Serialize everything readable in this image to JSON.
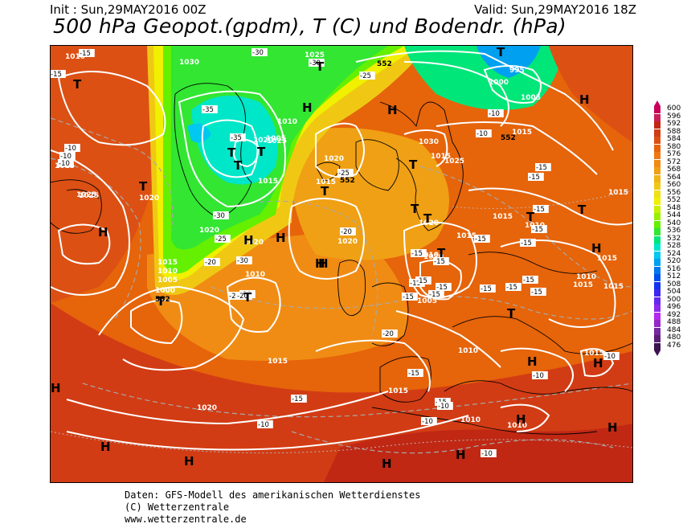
{
  "header": {
    "init": "Init : Sun,29MAY2016 00Z",
    "valid": "Valid: Sun,29MAY2016 18Z",
    "title": "500 hPa Geopot.(gpdm), T (C) und Bodendr. (hPa)"
  },
  "footer": {
    "line1": "Daten: GFS-Modell des amerikanischen Wetterdienstes",
    "line2": "(C) Wetterzentrale",
    "line3": "www.wetterzentrale.de"
  },
  "colorbar": {
    "levels": [
      "600",
      "596",
      "592",
      "588",
      "584",
      "580",
      "576",
      "572",
      "568",
      "564",
      "560",
      "556",
      "552",
      "548",
      "544",
      "540",
      "536",
      "532",
      "528",
      "524",
      "520",
      "516",
      "512",
      "508",
      "504",
      "500",
      "496",
      "492",
      "488",
      "484",
      "480",
      "476"
    ],
    "colors": [
      "#c8005a",
      "#c81e5a",
      "#c02814",
      "#d23c14",
      "#dc5014",
      "#e6640a",
      "#f07814",
      "#f08c14",
      "#f0a014",
      "#f0b414",
      "#f0c814",
      "#f0e014",
      "#f0f000",
      "#c8f000",
      "#96f000",
      "#64f000",
      "#32e632",
      "#00e678",
      "#00e6c8",
      "#00c8f0",
      "#00a0f0",
      "#0078f0",
      "#0050f0",
      "#1432f0",
      "#3c28f0",
      "#6428f0",
      "#8c28f0",
      "#b428f0",
      "#9628c8",
      "#7828a0",
      "#5a1e78",
      "#3c1450"
    ]
  },
  "map": {
    "pressure_centers": [
      {
        "label": "T"
      },
      {
        "label": "T"
      },
      {
        "label": "T"
      },
      {
        "label": "T"
      },
      {
        "label": "T"
      },
      {
        "label": "T"
      },
      {
        "label": "T"
      },
      {
        "label": "T"
      },
      {
        "label": "T"
      },
      {
        "label": "T"
      },
      {
        "label": "T"
      },
      {
        "label": "T"
      },
      {
        "label": "T"
      },
      {
        "label": "T"
      },
      {
        "label": "T"
      },
      {
        "label": "T"
      },
      {
        "label": "T"
      },
      {
        "label": "H"
      },
      {
        "label": "H"
      },
      {
        "label": "H"
      },
      {
        "label": "H"
      },
      {
        "label": "H"
      },
      {
        "label": "H"
      },
      {
        "label": "H"
      },
      {
        "label": "H"
      },
      {
        "label": "H"
      },
      {
        "label": "H"
      },
      {
        "label": "H"
      },
      {
        "label": "H"
      },
      {
        "label": "H"
      },
      {
        "label": "H"
      },
      {
        "label": "H"
      },
      {
        "label": "H"
      },
      {
        "label": "H"
      },
      {
        "label": "H"
      }
    ],
    "isobar_labels": [
      "1010",
      "1030",
      "1025",
      "995",
      "1000",
      "1005",
      "1015",
      "1020",
      "1025",
      "1010",
      "1005",
      "1030",
      "1025",
      "1015",
      "1020",
      "1015",
      "1025",
      "1020",
      "1020",
      "1020",
      "1015",
      "1010",
      "1015",
      "1010",
      "1005",
      "1000",
      "1010",
      "1020",
      "1015",
      "1015",
      "1010",
      "1005",
      "1015",
      "1015",
      "1015",
      "1010",
      "1015",
      "1020",
      "1015",
      "1010",
      "1010",
      "1010",
      "1015",
      "1015",
      "1020",
      "1020",
      "1015",
      "1025"
    ],
    "geopotential_labels": [
      "552",
      "552",
      "552",
      "552"
    ],
    "temperature_labels": [
      "-15",
      "-15",
      "-30",
      "-30",
      "-25",
      "-35",
      "-30",
      "-30",
      "-20",
      "-25",
      "-35",
      "-10",
      "-10",
      "-10",
      "-20",
      "-15",
      "-15",
      "-15",
      "-15",
      "-15",
      "-15",
      "-15",
      "-15",
      "-15",
      "-15",
      "-15",
      "-15",
      "-15",
      "-20",
      "-25",
      "-20",
      "-20",
      "-20",
      "-15",
      "-15",
      "-15",
      "-15",
      "-10",
      "-15",
      "-10",
      "-10",
      "-10",
      "-15",
      "-10",
      "-10",
      "-10",
      "-10",
      "-15"
    ]
  }
}
